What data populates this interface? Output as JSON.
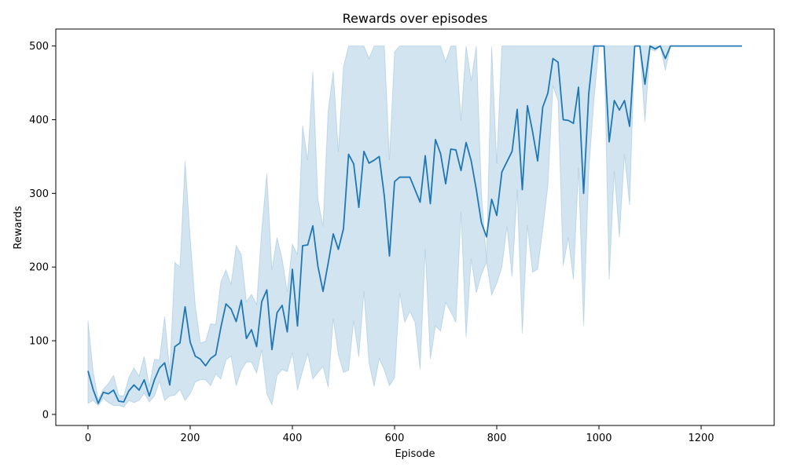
{
  "chart_data": {
    "type": "line",
    "title": "Rewards over episodes",
    "xlabel": "Episode",
    "ylabel": "Rewards",
    "xlim": [
      -63,
      1343
    ],
    "ylim": [
      -15,
      523
    ],
    "xticks": [
      0,
      200,
      400,
      600,
      800,
      1000,
      1200
    ],
    "yticks": [
      0,
      100,
      200,
      300,
      400,
      500
    ],
    "grid": false,
    "colors": {
      "line": "#1f77b4",
      "band": "#1f77b4",
      "band_opacity": 0.2
    },
    "series": [
      {
        "x": [
          0,
          10,
          20,
          30,
          40,
          50,
          60,
          70,
          80,
          90,
          100,
          110,
          120,
          130,
          140,
          150,
          160,
          170,
          180,
          190,
          200,
          210,
          220,
          230,
          240,
          250,
          260,
          270,
          280,
          290,
          300,
          310,
          320,
          330,
          340,
          350,
          360,
          370,
          380,
          390,
          400,
          410,
          420,
          430,
          440,
          450,
          460,
          470,
          480,
          490,
          500,
          510,
          520,
          530,
          540,
          550,
          560,
          570,
          580,
          590,
          600,
          610,
          620,
          630,
          640,
          650,
          660,
          670,
          680,
          690,
          700,
          710,
          720,
          730,
          740,
          750,
          760,
          770,
          780,
          790,
          800,
          810,
          820,
          830,
          840,
          850,
          860,
          870,
          880,
          890,
          900,
          910,
          920,
          930,
          940,
          950,
          960,
          970,
          980,
          990,
          1000,
          1010,
          1020,
          1030,
          1040,
          1050,
          1060,
          1070,
          1080,
          1090,
          1100,
          1110,
          1120,
          1130,
          1140,
          1150,
          1160,
          1170,
          1180,
          1190,
          1200,
          1210,
          1220,
          1230,
          1240,
          1250,
          1260,
          1270,
          1280
        ],
        "y": [
          59,
          34,
          15,
          30,
          28,
          33,
          18,
          17,
          32,
          40,
          33,
          47,
          25,
          47,
          63,
          70,
          40,
          92,
          97,
          146,
          98,
          79,
          75,
          66,
          76,
          81,
          118,
          150,
          143,
          126,
          155,
          103,
          115,
          92,
          153,
          169,
          88,
          138,
          148,
          112,
          197,
          120,
          229,
          230,
          256,
          201,
          167,
          205,
          245,
          224,
          252,
          353,
          340,
          281,
          357,
          341,
          345,
          350,
          296,
          215,
          316,
          322,
          322,
          322,
          305,
          288,
          351,
          286,
          373,
          354,
          313,
          360,
          359,
          331,
          369,
          344,
          305,
          260,
          241,
          292,
          270,
          329,
          343,
          357,
          414,
          305,
          419,
          384,
          344,
          417,
          436,
          483,
          478,
          400,
          399,
          395,
          444,
          300,
          435,
          500,
          500,
          500,
          370,
          426,
          413,
          426,
          391,
          500,
          500,
          448,
          500,
          496,
          500,
          483,
          500,
          500,
          500,
          500,
          500,
          500,
          500,
          500,
          500,
          500,
          500,
          500,
          500,
          500,
          500
        ],
        "upper": [
          127,
          58,
          20,
          34,
          42,
          53,
          26,
          25,
          50,
          63,
          52,
          79,
          38,
          75,
          74,
          133,
          57,
          206,
          200,
          344,
          240,
          147,
          97,
          99,
          123,
          122,
          180,
          196,
          176,
          229,
          217,
          153,
          163,
          149,
          250,
          327,
          196,
          240,
          211,
          166,
          231,
          217,
          392,
          345,
          465,
          292,
          255,
          412,
          466,
          356,
          472,
          500,
          500,
          500,
          500,
          483,
          500,
          500,
          500,
          345,
          492,
          500,
          500,
          500,
          500,
          500,
          500,
          500,
          500,
          500,
          479,
          500,
          500,
          399,
          500,
          453,
          500,
          300,
          208,
          500,
          340,
          500,
          500,
          500,
          500,
          500,
          500,
          500,
          500,
          500,
          500,
          500,
          500,
          500,
          500,
          500,
          500,
          500,
          500,
          500,
          500,
          500,
          500,
          500,
          500,
          500,
          500,
          500,
          500,
          500,
          500,
          500,
          500,
          500,
          500,
          500,
          500,
          500,
          500,
          500,
          500,
          500,
          500,
          500,
          500,
          500,
          500,
          500,
          500
        ],
        "lower": [
          15,
          19,
          12,
          22,
          16,
          12,
          12,
          10,
          19,
          16,
          19,
          29,
          17,
          25,
          45,
          19,
          25,
          26,
          34,
          19,
          28,
          44,
          47,
          47,
          39,
          55,
          48,
          74,
          79,
          39,
          60,
          71,
          71,
          56,
          88,
          28,
          13,
          53,
          61,
          58,
          84,
          33,
          59,
          83,
          48,
          57,
          65,
          37,
          130,
          81,
          57,
          60,
          127,
          78,
          167,
          70,
          38,
          76,
          60,
          39,
          50,
          165,
          125,
          140,
          125,
          61,
          225,
          75,
          120,
          113,
          152,
          139,
          125,
          275,
          105,
          211,
          165,
          190,
          207,
          162,
          178,
          200,
          255,
          187,
          305,
          110,
          257,
          193,
          197,
          251,
          310,
          446,
          426,
          202,
          240,
          183,
          335,
          120,
          330,
          425,
          500,
          500,
          183,
          330,
          240,
          353,
          284,
          500,
          500,
          397,
          496,
          493,
          500,
          467,
          500,
          500,
          500,
          500,
          500,
          500,
          500,
          500,
          500,
          500,
          500,
          500,
          500,
          500,
          500
        ]
      }
    ]
  }
}
